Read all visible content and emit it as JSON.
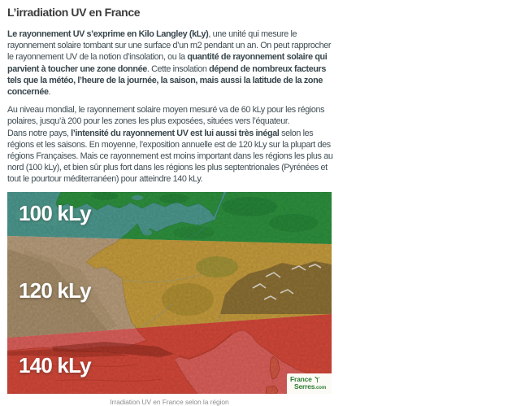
{
  "page": {
    "title": "L’irradiation UV en France"
  },
  "article": {
    "paragraph1": [
      {
        "t": "Le rayonnement UV s’exprime en Kilo Langley (kLy)",
        "b": true
      },
      {
        "t": ", une unité qui mesure le rayonnement solaire tombant sur une surface d’un m2 pendant un an. On peut rapprocher le rayonnement UV de la notion d’insolation, ou la ",
        "b": false
      },
      {
        "t": "quantité de rayonnement solaire qui parvient à toucher une zone donnée",
        "b": true
      },
      {
        "t": ". Cette insolation ",
        "b": false
      },
      {
        "t": "dépend de nombreux facteurs tels que la météo, l’heure de la journée, la saison, mais aussi la latitude de la zone concernée",
        "b": true
      },
      {
        "t": ".",
        "b": false
      }
    ],
    "paragraph2": [
      {
        "t": "Au niveau mondial, le rayonnement solaire moyen mesuré va de 60 kLy pour les régions polaires, jusqu’à 200 pour les zones les plus exposées, situées vers l’équateur.",
        "b": false
      },
      {
        "br": true
      },
      {
        "t": "Dans notre pays, ",
        "b": false
      },
      {
        "t": "l’intensité du rayonnement UV est lui aussi très inégal",
        "b": true
      },
      {
        "t": " selon les régions et les saisons. En moyenne, l’exposition annuelle est de 120 kLy sur la plupart des régions Françaises. Mais ce rayonnement est moins important dans les régions les plus au nord (100 kLy), et bien sûr plus fort dans les régions les plus septentrionales (Pyrénées et tout le pourtour méditerranéen) pour atteindre 140 kLy.",
        "b": false
      }
    ]
  },
  "map": {
    "zones": [
      {
        "label": "100 kLy"
      },
      {
        "label": "120 kLy"
      },
      {
        "label": "140 kLy"
      }
    ],
    "colors": {
      "sea_north": "#4f9e94",
      "sea_mid": "#bfa380",
      "sea_south": "#e4635e",
      "land_north": "#2f9640",
      "land_mid": "#cda23f",
      "land_south": "#dc4b3c"
    },
    "logo": {
      "line1": "France",
      "line2": "Serres",
      "suffix": ".com"
    },
    "caption": "Irradiation UV en France selon la région"
  }
}
